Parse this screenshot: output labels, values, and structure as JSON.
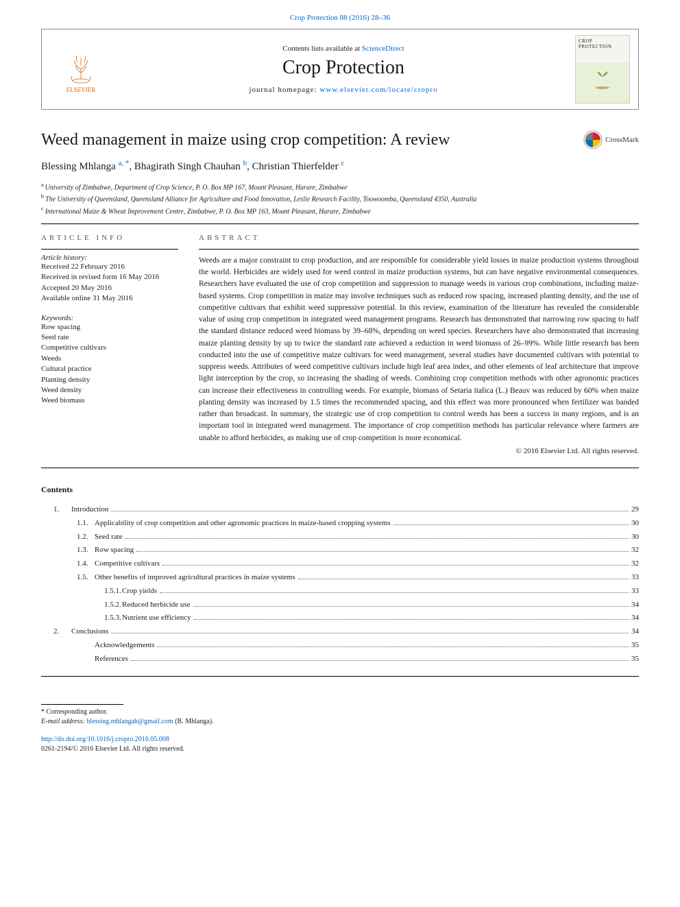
{
  "top_citation": {
    "text": "Crop Protection 88 (2016) 28–36",
    "url_text": "Crop Protection 88 (2016) 28–36"
  },
  "masthead": {
    "contents_prefix": "Contents lists available at ",
    "contents_link": "ScienceDirect",
    "journal_name": "Crop Protection",
    "homepage_prefix": "journal homepage: ",
    "homepage_link": "www.elsevier.com/locate/cropro",
    "publisher": "ELSEVIER",
    "cover_title": "CROP PROTECTION"
  },
  "title": "Weed management in maize using crop competition: A review",
  "crossmark_label": "CrossMark",
  "authors": [
    {
      "name": "Blessing Mhlanga",
      "sup": "a, ",
      "corr": "*"
    },
    {
      "name": "Bhagirath Singh Chauhan",
      "sup": "b",
      "corr": ""
    },
    {
      "name": "Christian Thierfelder",
      "sup": "c",
      "corr": ""
    }
  ],
  "affiliations": [
    {
      "sup": "a",
      "text": "University of Zimbabwe, Department of Crop Science, P. O. Box MP 167, Mount Pleasant, Harare, Zimbabwe"
    },
    {
      "sup": "b",
      "text": "The University of Queensland, Queensland Alliance for Agriculture and Food Innovation, Leslie Research Facility, Toowoomba, Queensland 4350, Australia"
    },
    {
      "sup": "c",
      "text": "International Maize & Wheat Improvement Centre, Zimbabwe, P. O. Box MP 163, Mount Pleasant, Harare, Zimbabwe"
    }
  ],
  "article_info_heading": "ARTICLE INFO",
  "history": {
    "label": "Article history:",
    "items": [
      "Received 22 February 2016",
      "Received in revised form 16 May 2016",
      "Accepted 20 May 2016",
      "Available online 31 May 2016"
    ]
  },
  "keywords": {
    "label": "Keywords:",
    "items": [
      "Row spacing",
      "Seed rate",
      "Competitive cultivars",
      "Weeds",
      "Cultural practice",
      "Planting density",
      "Weed density",
      "Weed biomass"
    ]
  },
  "abstract_heading": "ABSTRACT",
  "abstract_text": "Weeds are a major constraint to crop production, and are responsible for considerable yield losses in maize production systems throughout the world. Herbicides are widely used for weed control in maize production systems, but can have negative environmental consequences. Researchers have evaluated the use of crop competition and suppression to manage weeds in various crop combinations, including maize-based systems. Crop competition in maize may involve techniques such as reduced row spacing, increased planting density, and the use of competitive cultivars that exhibit weed suppressive potential. In this review, examination of the literature has revealed the considerable value of using crop competition in integrated weed management programs. Research has demonstrated that narrowing row spacing to half the standard distance reduced weed biomass by 39–68%, depending on weed species. Researchers have also demonstrated that increasing maize planting density by up to twice the standard rate achieved a reduction in weed biomass of 26–99%. While little research has been conducted into the use of competitive maize cultivars for weed management, several studies have documented cultivars with potential to suppress weeds. Attributes of weed competitive cultivars include high leaf area index, and other elements of leaf architecture that improve light interception by the crop, so increasing the shading of weeds. Combining crop competition methods with other agronomic practices can increase their effectiveness in controlling weeds. For example, biomass of Setaria italica (L.) Beauv was reduced by 60% when maize planting density was increased by 1.5 times the recommended spacing, and this effect was more pronounced when fertilizer was banded rather than broadcast. In summary, the strategic use of crop competition to control weeds has been a success in many regions, and is an important tool in integrated weed management. The importance of crop competition methods has particular relevance where farmers are unable to afford herbicides, as making use of crop competition is more economical.",
  "copyright": "© 2016 Elsevier Ltd. All rights reserved.",
  "contents_heading": "Contents",
  "toc": [
    {
      "level": 1,
      "num": "1.",
      "label": "Introduction",
      "page": "29"
    },
    {
      "level": 2,
      "num": "1.1.",
      "label": "Applicability of crop competition and other agronomic practices in maize-based cropping systems",
      "page": "30"
    },
    {
      "level": 2,
      "num": "1.2.",
      "label": "Seed rate",
      "page": "30"
    },
    {
      "level": 2,
      "num": "1.3.",
      "label": "Row spacing",
      "page": "32"
    },
    {
      "level": 2,
      "num": "1.4.",
      "label": "Competitive cultivars",
      "page": "32"
    },
    {
      "level": 2,
      "num": "1.5.",
      "label": "Other benefits of improved agricultural practices in maize systems",
      "page": "33"
    },
    {
      "level": 3,
      "num": "1.5.1.",
      "label": "Crop yields",
      "page": "33"
    },
    {
      "level": 3,
      "num": "1.5.2.",
      "label": "Reduced herbicide use",
      "page": "34"
    },
    {
      "level": 3,
      "num": "1.5.3.",
      "label": "Nutrient use efficiency",
      "page": "34"
    },
    {
      "level": 1,
      "num": "2.",
      "label": "Conclusions",
      "page": "34"
    },
    {
      "level": 2,
      "num": "",
      "label": "Acknowledgements",
      "page": "35"
    },
    {
      "level": 2,
      "num": "",
      "label": "References",
      "page": "35"
    }
  ],
  "corresponding": {
    "marker": "*",
    "label": "Corresponding author.",
    "email_label": "E-mail address: ",
    "email": "blessing.mhlangah@gmail.com",
    "email_suffix": " (B. Mhlanga)."
  },
  "doi": {
    "url": "http://dx.doi.org/10.1016/j.cropro.2016.05.008",
    "issn_line": "0261-2194/© 2016 Elsevier Ltd. All rights reserved."
  },
  "colors": {
    "link": "#0066cc",
    "publisher": "#d9660a",
    "text": "#1a1a1a",
    "border": "#888888"
  }
}
